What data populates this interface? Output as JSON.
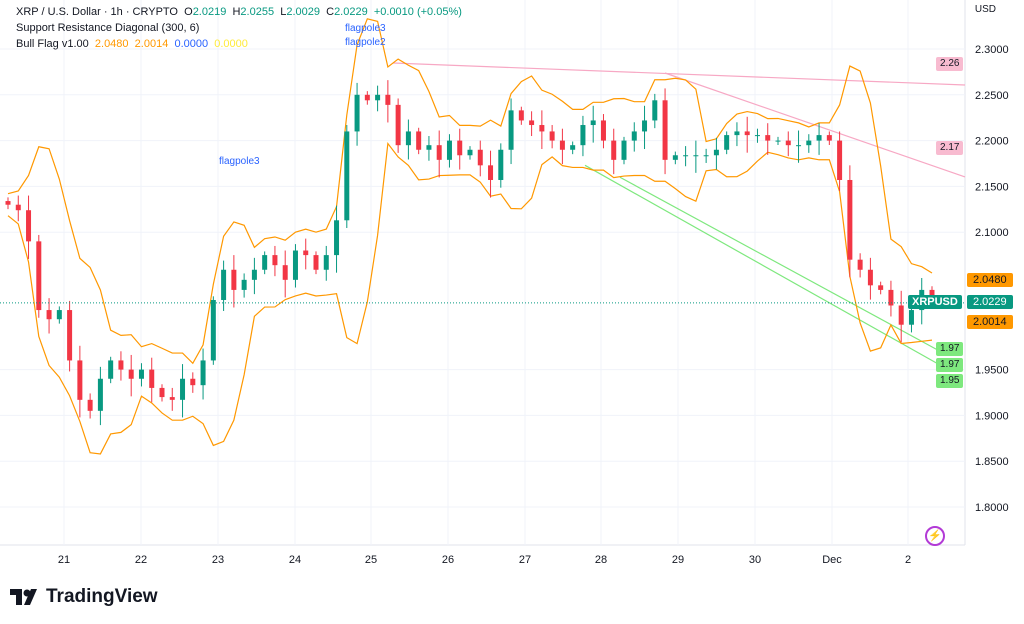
{
  "legend": {
    "symbol": "XRP / U.S. Dollar · 1h · CRYPTO",
    "o_label": "O",
    "o": "2.0219",
    "h_label": "H",
    "h": "2.0255",
    "l_label": "L",
    "l": "2.0029",
    "c_label": "C",
    "c": "2.0229",
    "change": "+0.0010 (+0.05%)",
    "indicator1": "Support Resistance Diagonal (300, 6)",
    "indicator2": "Bull Flag v1.00",
    "ind2_values": [
      "2.0480",
      "2.0014",
      "0.0000",
      "0.0000"
    ]
  },
  "currency": "USD",
  "annotations": {
    "flagpole_top": "flagpole2",
    "flagpole_top2": "flagpole3",
    "flagpole_mid": "flagpole3"
  },
  "price_tags": {
    "upper_band": "2.0480",
    "symbol": "XRPUSD",
    "last": "2.0229",
    "lower_band": "2.0014",
    "resistance1": "2.26",
    "resistance2": "2.17",
    "support1": "1.97",
    "support2": "1.97",
    "support3": "1.95"
  },
  "brand": "TradingView",
  "colors": {
    "up": "#089981",
    "down": "#f23645",
    "band": "#ff9800",
    "resistance": "#f7a8c4",
    "support": "#7ee87e",
    "last": "#089981"
  },
  "chart_data": {
    "type": "candlestick",
    "ylim": [
      1.75,
      2.33
    ],
    "y_ticks": [
      "2.3000",
      "2.2500",
      "2.2000",
      "2.1500",
      "2.1000",
      "1.9500",
      "1.9000",
      "1.8500",
      "1.8000"
    ],
    "x_ticks": [
      "21",
      "22",
      "23",
      "24",
      "25",
      "26",
      "27",
      "28",
      "29",
      "30",
      "Dec",
      "2"
    ],
    "grid": true,
    "last_price": 2.0229,
    "closes": [
      2.13,
      2.124,
      2.09,
      2.015,
      2.005,
      2.015,
      1.96,
      1.917,
      1.905,
      1.94,
      1.96,
      1.95,
      1.94,
      1.95,
      1.93,
      1.92,
      1.917,
      1.94,
      1.933,
      1.96,
      2.026,
      2.059,
      2.037,
      2.048,
      2.059,
      2.075,
      2.064,
      2.048,
      2.08,
      2.075,
      2.059,
      2.075,
      2.113,
      2.21,
      2.25,
      2.244,
      2.25,
      2.239,
      2.195,
      2.21,
      2.19,
      2.195,
      2.179,
      2.2,
      2.184,
      2.19,
      2.173,
      2.157,
      2.19,
      2.233,
      2.222,
      2.217,
      2.21,
      2.2,
      2.19,
      2.195,
      2.217,
      2.222,
      2.2,
      2.179,
      2.2,
      2.21,
      2.222,
      2.244,
      2.179,
      2.184,
      2.184,
      2.184,
      2.184,
      2.19,
      2.206,
      2.21,
      2.206,
      2.206,
      2.2,
      2.2,
      2.195,
      2.195,
      2.2,
      2.206,
      2.2,
      2.157,
      2.07,
      2.059,
      2.042,
      2.037,
      2.02,
      1.999,
      2.015,
      2.037,
      2.023
    ],
    "resistance_lines": [
      {
        "from": 2.2847,
        "to": 2.2607
      },
      {
        "from": 2.2738,
        "to": 2.1603
      }
    ],
    "support_lines": [
      {
        "from": 2.173,
        "to": 1.955
      },
      {
        "from": 2.16,
        "to": 1.97
      }
    ]
  }
}
